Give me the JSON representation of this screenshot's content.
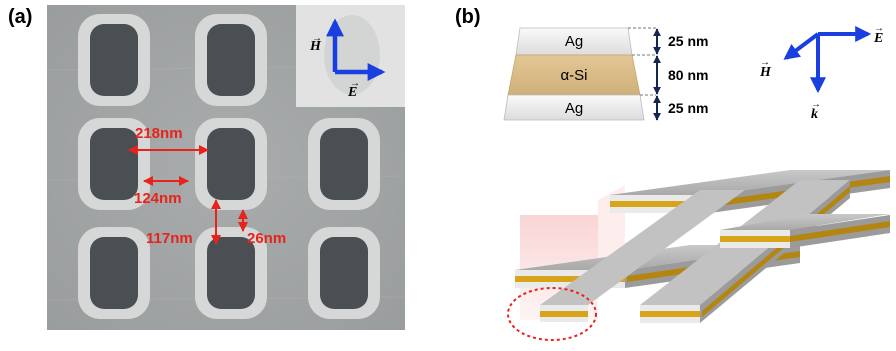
{
  "panels": {
    "a_label": "(a)",
    "b_label": "(b)"
  },
  "sem": {
    "measurements": {
      "width": "218nm",
      "gap": "124nm",
      "height": "117nm",
      "bridge": "26nm"
    },
    "inset_axes": {
      "h_label": "H",
      "e_label": "E"
    }
  },
  "stack": {
    "layers": [
      {
        "material": "Ag",
        "thickness": "25 nm"
      },
      {
        "material": "α-Si",
        "thickness": "80 nm"
      },
      {
        "material": "Ag",
        "thickness": "25 nm"
      }
    ],
    "colors": {
      "ag": "#eeeeee",
      "si": "#dcc08a"
    }
  },
  "axes": {
    "e_label": "E",
    "h_label": "H",
    "k_label": "k"
  },
  "colors": {
    "accent": "#e8231c",
    "arrow_blue": "#1a3fe0",
    "gold": "#d8a419",
    "gray_top": "#b9b9b9"
  }
}
